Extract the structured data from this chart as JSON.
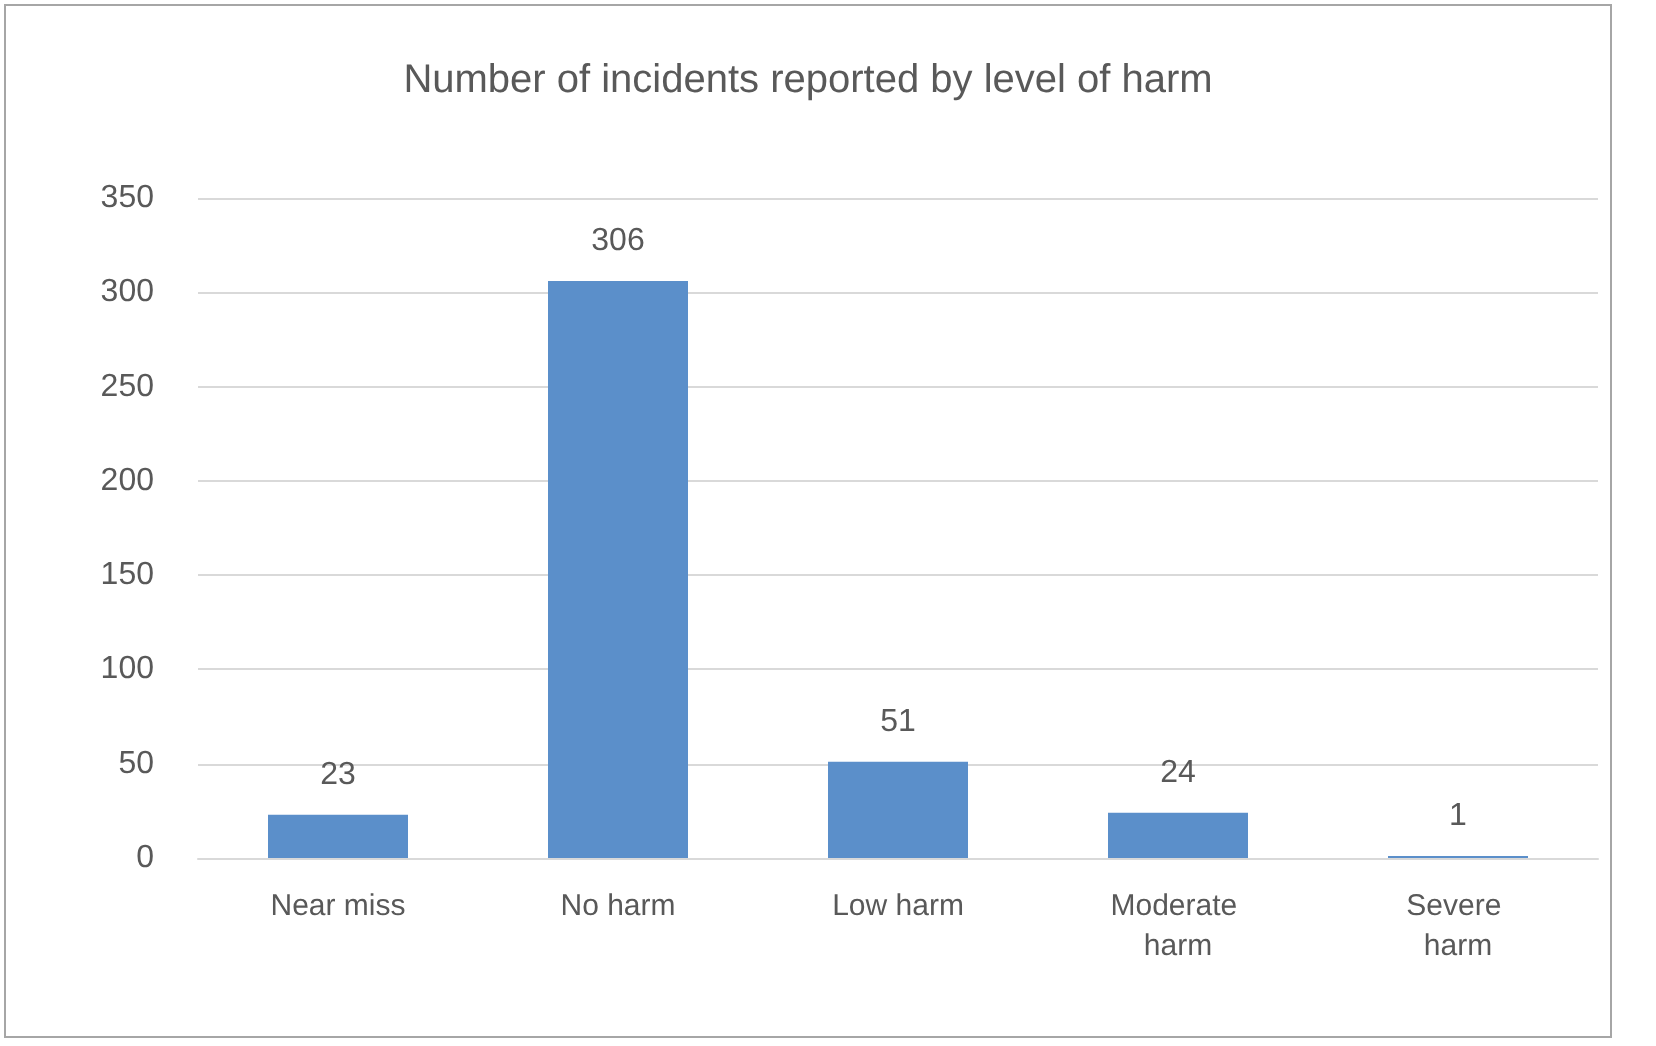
{
  "chart_data": {
    "type": "bar",
    "title": "Number of incidents reported by level of harm",
    "categories": [
      "Near miss",
      "No harm",
      "Low harm",
      "Moderate harm",
      "Severe harm"
    ],
    "values": [
      23,
      306,
      51,
      24,
      1
    ],
    "color": "#5b8fca",
    "ylim": [
      0,
      350
    ],
    "yticks": [
      0,
      50,
      100,
      150,
      200,
      250,
      300,
      350
    ],
    "grid": "y",
    "data_labels": true
  }
}
